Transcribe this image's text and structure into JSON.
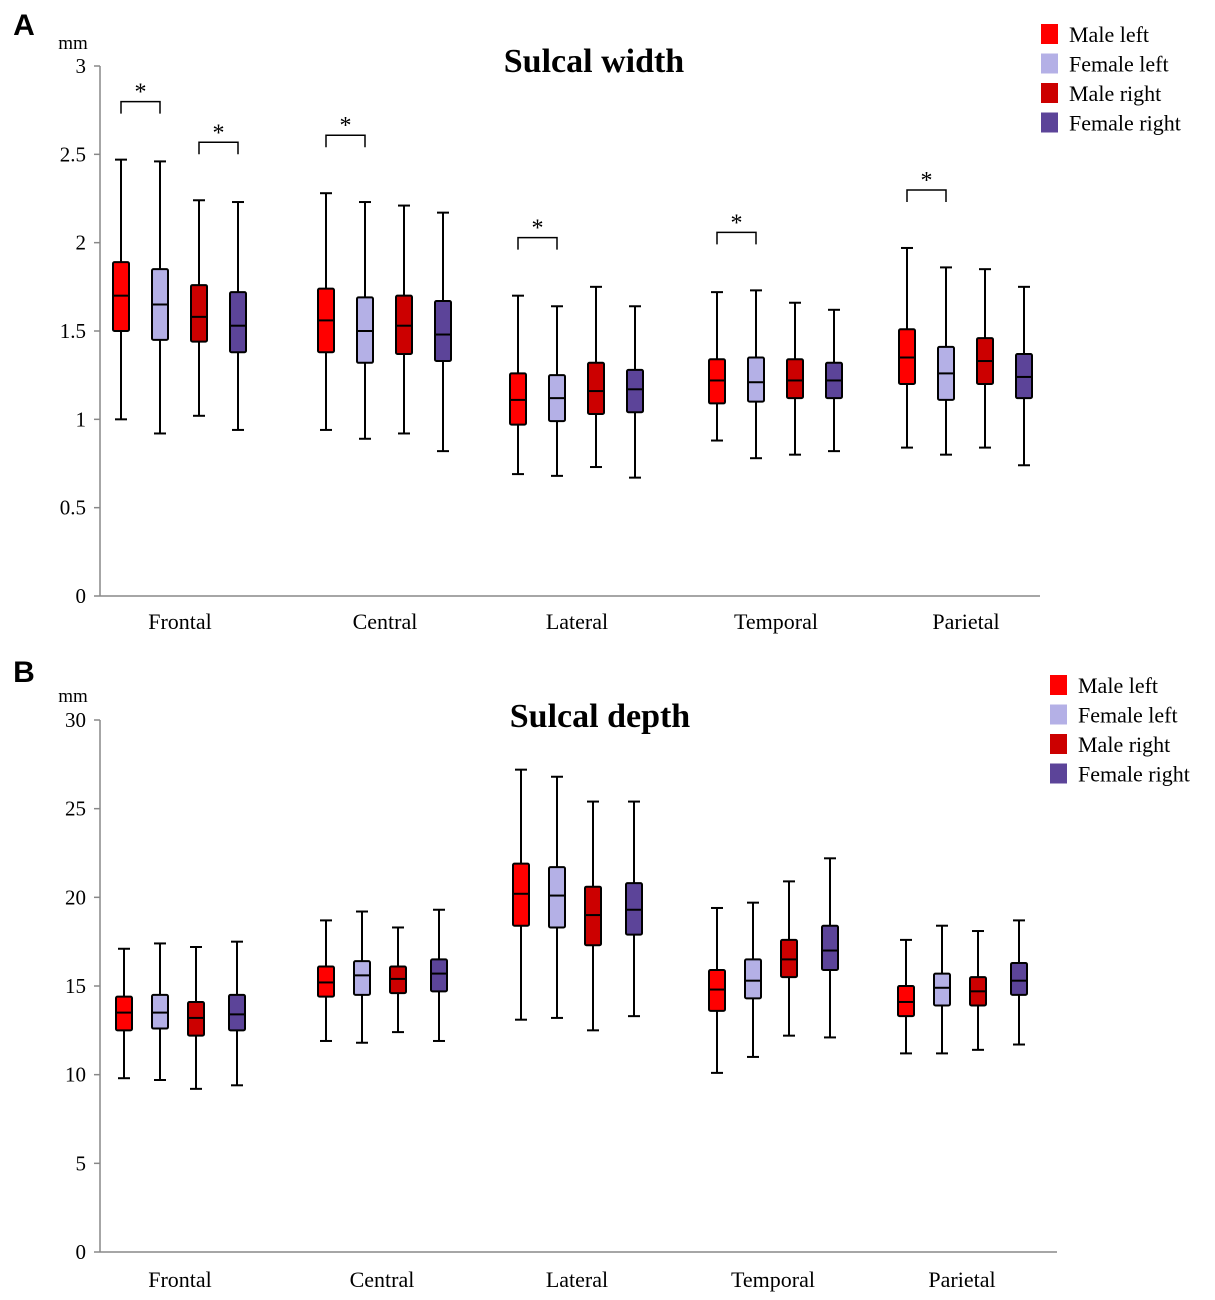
{
  "figure": {
    "background": "#ffffff"
  },
  "legend_colors": {
    "Male left": "#ff0000",
    "Female left": "#b4b0e6",
    "Male right": "#cc0000",
    "Female right": "#5c4499"
  },
  "chart_data": [
    {
      "type": "boxplot",
      "panel_label": "A",
      "title": "Sulcal width",
      "ylabel": "mm",
      "ylim": [
        0,
        3
      ],
      "yticks": [
        0,
        0.5,
        1,
        1.5,
        2,
        2.5,
        3
      ],
      "ytick_labels": [
        "0",
        "0.5",
        "1",
        "1.5",
        "2",
        "2.5",
        "3"
      ],
      "categories": [
        "Frontal",
        "Central",
        "Lateral",
        "Temporal",
        "Parietal"
      ],
      "series": [
        {
          "name": "Male left",
          "boxes": [
            {
              "min": 1.0,
              "q1": 1.5,
              "median": 1.7,
              "q3": 1.89,
              "max": 2.47
            },
            {
              "min": 0.94,
              "q1": 1.38,
              "median": 1.56,
              "q3": 1.74,
              "max": 2.28
            },
            {
              "min": 0.69,
              "q1": 0.97,
              "median": 1.11,
              "q3": 1.26,
              "max": 1.7
            },
            {
              "min": 0.88,
              "q1": 1.09,
              "median": 1.22,
              "q3": 1.34,
              "max": 1.72
            },
            {
              "min": 0.84,
              "q1": 1.2,
              "median": 1.35,
              "q3": 1.51,
              "max": 1.97
            }
          ]
        },
        {
          "name": "Female left",
          "boxes": [
            {
              "min": 0.92,
              "q1": 1.45,
              "median": 1.65,
              "q3": 1.85,
              "max": 2.46
            },
            {
              "min": 0.89,
              "q1": 1.32,
              "median": 1.5,
              "q3": 1.69,
              "max": 2.23
            },
            {
              "min": 0.68,
              "q1": 0.99,
              "median": 1.12,
              "q3": 1.25,
              "max": 1.64
            },
            {
              "min": 0.78,
              "q1": 1.1,
              "median": 1.21,
              "q3": 1.35,
              "max": 1.73
            },
            {
              "min": 0.8,
              "q1": 1.11,
              "median": 1.26,
              "q3": 1.41,
              "max": 1.86
            }
          ]
        },
        {
          "name": "Male right",
          "boxes": [
            {
              "min": 1.02,
              "q1": 1.44,
              "median": 1.58,
              "q3": 1.76,
              "max": 2.24
            },
            {
              "min": 0.92,
              "q1": 1.37,
              "median": 1.53,
              "q3": 1.7,
              "max": 2.21
            },
            {
              "min": 0.73,
              "q1": 1.03,
              "median": 1.16,
              "q3": 1.32,
              "max": 1.75
            },
            {
              "min": 0.8,
              "q1": 1.12,
              "median": 1.22,
              "q3": 1.34,
              "max": 1.66
            },
            {
              "min": 0.84,
              "q1": 1.2,
              "median": 1.33,
              "q3": 1.46,
              "max": 1.85
            }
          ]
        },
        {
          "name": "Female right",
          "boxes": [
            {
              "min": 0.94,
              "q1": 1.38,
              "median": 1.53,
              "q3": 1.72,
              "max": 2.23
            },
            {
              "min": 0.82,
              "q1": 1.33,
              "median": 1.48,
              "q3": 1.67,
              "max": 2.17
            },
            {
              "min": 0.67,
              "q1": 1.04,
              "median": 1.17,
              "q3": 1.28,
              "max": 1.64
            },
            {
              "min": 0.82,
              "q1": 1.12,
              "median": 1.22,
              "q3": 1.32,
              "max": 1.62
            },
            {
              "min": 0.74,
              "q1": 1.12,
              "median": 1.24,
              "q3": 1.37,
              "max": 1.75
            }
          ]
        }
      ],
      "significance": [
        {
          "category": 0,
          "series": [
            0,
            1
          ],
          "label": "*"
        },
        {
          "category": 0,
          "series": [
            2,
            3
          ],
          "label": "*"
        },
        {
          "category": 1,
          "series": [
            0,
            1
          ],
          "label": "*"
        },
        {
          "category": 2,
          "series": [
            0,
            1
          ],
          "label": "*"
        },
        {
          "category": 3,
          "series": [
            0,
            1
          ],
          "label": "*"
        },
        {
          "category": 4,
          "series": [
            0,
            1
          ],
          "label": "*"
        }
      ],
      "legend_position": "top-right"
    },
    {
      "type": "boxplot",
      "panel_label": "B",
      "title": "Sulcal depth",
      "ylabel": "mm",
      "ylim": [
        0,
        30
      ],
      "yticks": [
        0,
        5,
        10,
        15,
        20,
        25,
        30
      ],
      "ytick_labels": [
        "0",
        "5",
        "10",
        "15",
        "20",
        "25",
        "30"
      ],
      "categories": [
        "Frontal",
        "Central",
        "Lateral",
        "Temporal",
        "Parietal"
      ],
      "series": [
        {
          "name": "Male left",
          "boxes": [
            {
              "min": 9.8,
              "q1": 12.5,
              "median": 13.5,
              "q3": 14.4,
              "max": 17.1
            },
            {
              "min": 11.9,
              "q1": 14.4,
              "median": 15.2,
              "q3": 16.1,
              "max": 18.7
            },
            {
              "min": 13.1,
              "q1": 18.4,
              "median": 20.2,
              "q3": 21.9,
              "max": 27.2
            },
            {
              "min": 10.1,
              "q1": 13.6,
              "median": 14.8,
              "q3": 15.9,
              "max": 19.4
            },
            {
              "min": 11.2,
              "q1": 13.3,
              "median": 14.1,
              "q3": 15.0,
              "max": 17.6
            }
          ]
        },
        {
          "name": "Female left",
          "boxes": [
            {
              "min": 9.7,
              "q1": 12.6,
              "median": 13.5,
              "q3": 14.5,
              "max": 17.4
            },
            {
              "min": 11.8,
              "q1": 14.5,
              "median": 15.6,
              "q3": 16.4,
              "max": 19.2
            },
            {
              "min": 13.2,
              "q1": 18.3,
              "median": 20.1,
              "q3": 21.7,
              "max": 26.8
            },
            {
              "min": 11.0,
              "q1": 14.3,
              "median": 15.3,
              "q3": 16.5,
              "max": 19.7
            },
            {
              "min": 11.2,
              "q1": 13.9,
              "median": 14.9,
              "q3": 15.7,
              "max": 18.4
            }
          ]
        },
        {
          "name": "Male right",
          "boxes": [
            {
              "min": 9.2,
              "q1": 12.2,
              "median": 13.2,
              "q3": 14.1,
              "max": 17.2
            },
            {
              "min": 12.4,
              "q1": 14.6,
              "median": 15.4,
              "q3": 16.1,
              "max": 18.3
            },
            {
              "min": 12.5,
              "q1": 17.3,
              "median": 19.0,
              "q3": 20.6,
              "max": 25.4
            },
            {
              "min": 12.2,
              "q1": 15.5,
              "median": 16.5,
              "q3": 17.6,
              "max": 20.9
            },
            {
              "min": 11.4,
              "q1": 13.9,
              "median": 14.7,
              "q3": 15.5,
              "max": 18.1
            }
          ]
        },
        {
          "name": "Female right",
          "boxes": [
            {
              "min": 9.4,
              "q1": 12.5,
              "median": 13.4,
              "q3": 14.5,
              "max": 17.5
            },
            {
              "min": 11.9,
              "q1": 14.7,
              "median": 15.7,
              "q3": 16.5,
              "max": 19.3
            },
            {
              "min": 13.3,
              "q1": 17.9,
              "median": 19.3,
              "q3": 20.8,
              "max": 25.4
            },
            {
              "min": 12.1,
              "q1": 15.9,
              "median": 17.0,
              "q3": 18.4,
              "max": 22.2
            },
            {
              "min": 11.7,
              "q1": 14.5,
              "median": 15.3,
              "q3": 16.3,
              "max": 18.7
            }
          ]
        }
      ],
      "significance": [],
      "legend_position": "top-right"
    }
  ]
}
